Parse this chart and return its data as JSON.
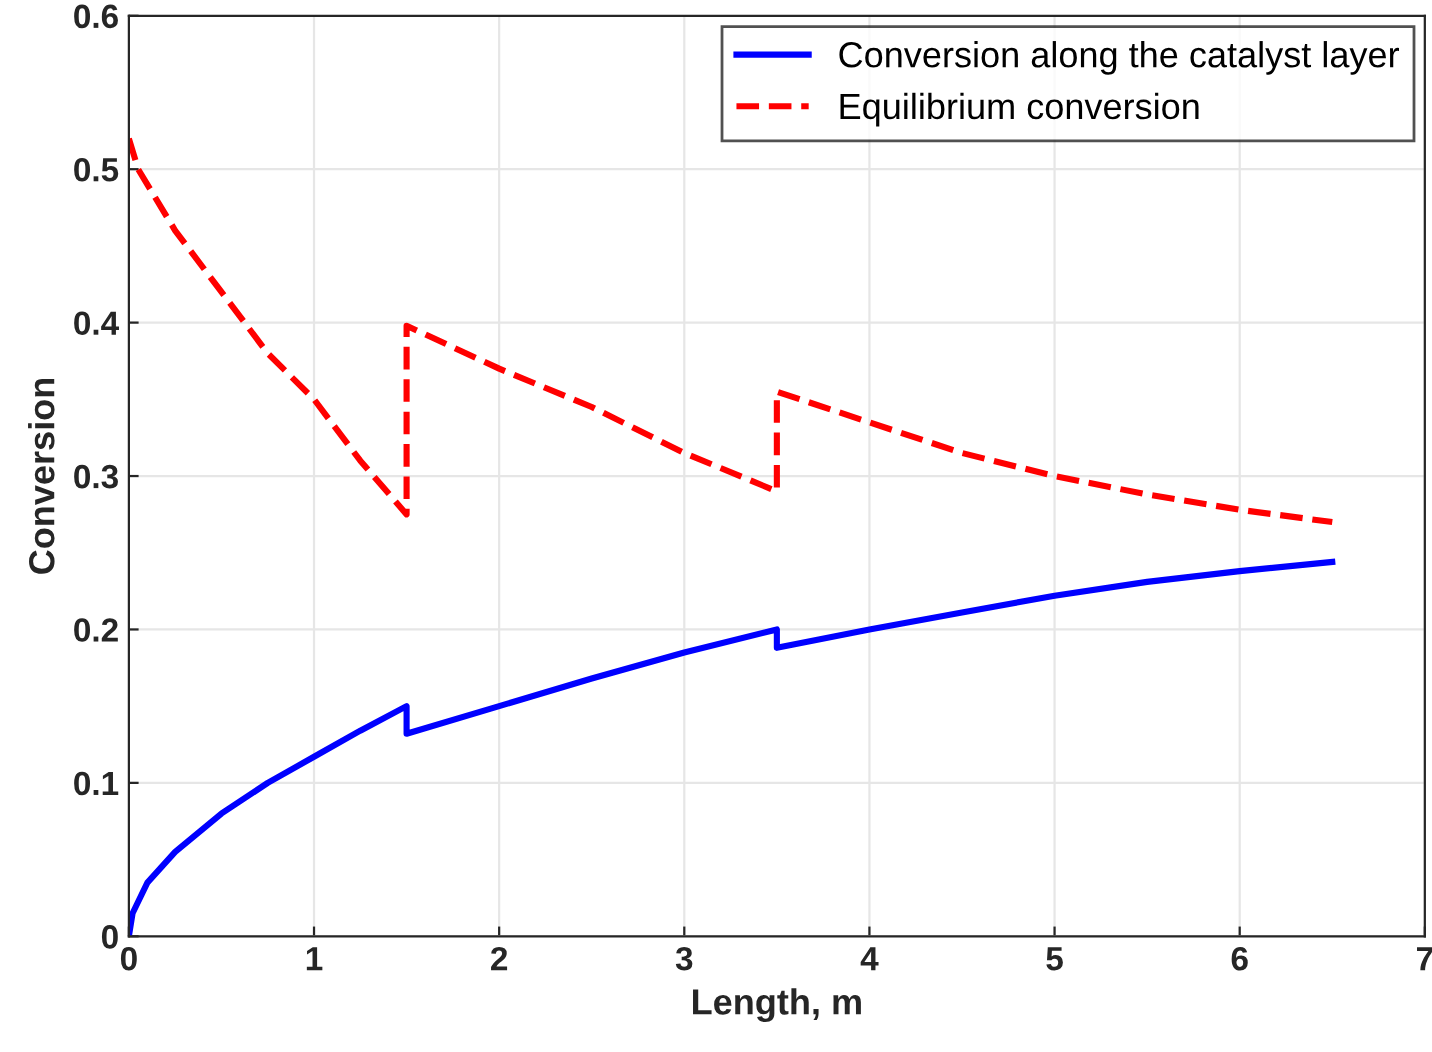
{
  "chart_data": {
    "type": "line",
    "xlabel": "Length, m",
    "ylabel": "Conversion",
    "xlim": [
      0,
      7
    ],
    "ylim": [
      0,
      0.6
    ],
    "xticks": [
      0,
      1,
      2,
      3,
      4,
      5,
      6,
      7
    ],
    "yticks": [
      0,
      0.1,
      0.2,
      0.3,
      0.4,
      0.5,
      0.6
    ],
    "grid": true,
    "legend": "top right",
    "series": [
      {
        "name": "Conversion along the catalyst layer",
        "color": "#0000ff",
        "line_style": "solid",
        "x": [
          0,
          0.02,
          0.1,
          0.25,
          0.5,
          0.75,
          1,
          1.25,
          1.5,
          1.5,
          2,
          2.5,
          3,
          3.5,
          3.5,
          4,
          4.5,
          5,
          5.5,
          6,
          6.5
        ],
        "values": [
          0,
          0.015,
          0.035,
          0.055,
          0.08,
          0.1,
          0.117,
          0.134,
          0.15,
          0.132,
          0.15,
          0.168,
          0.185,
          0.2,
          0.188,
          0.2,
          0.211,
          0.222,
          0.231,
          0.238,
          0.244
        ]
      },
      {
        "name": "Equilibrium conversion",
        "color": "#ff0000",
        "line_style": "dashed",
        "x": [
          0,
          0.05,
          0.25,
          0.5,
          0.75,
          1,
          1.25,
          1.5,
          1.5,
          2,
          2.5,
          3,
          3.5,
          3.5,
          4,
          4.5,
          5,
          5.5,
          6,
          6.5
        ],
        "values": [
          0.52,
          0.5,
          0.46,
          0.42,
          0.38,
          0.35,
          0.31,
          0.275,
          0.398,
          0.37,
          0.345,
          0.315,
          0.29,
          0.355,
          0.335,
          0.315,
          0.3,
          0.288,
          0.278,
          0.27
        ]
      }
    ]
  }
}
